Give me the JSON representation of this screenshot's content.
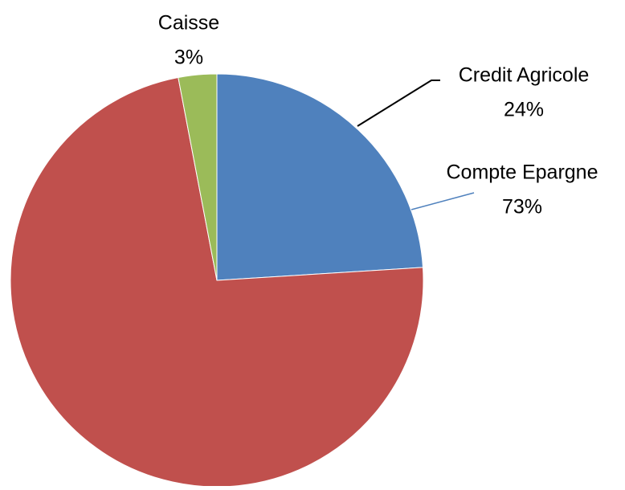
{
  "chart_data": {
    "type": "pie",
    "categories": [
      "Credit Agricole",
      "Compte Epargne",
      "Caisse"
    ],
    "values": [
      24,
      73,
      3
    ],
    "value_labels": [
      "24%",
      "73%",
      "3%"
    ],
    "colors": [
      "#4f81bd",
      "#c0504d",
      "#9bbb59"
    ]
  }
}
